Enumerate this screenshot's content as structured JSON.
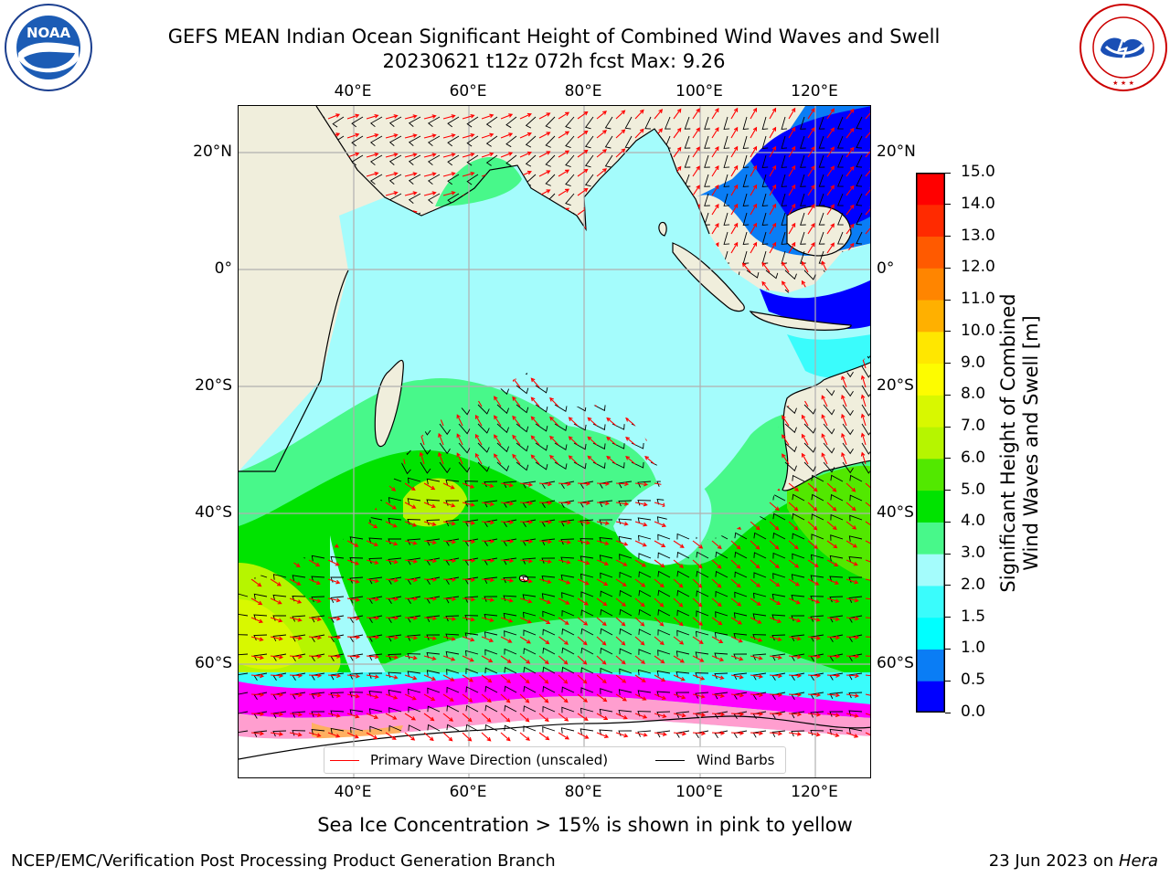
{
  "header": {
    "title_line1": "GEFS MEAN Indian Ocean Significant Height of Combined Wind Waves and Swell",
    "title_line2": "20230621 t12z 072h fcst   Max: 9.26"
  },
  "logos": {
    "noaa_text": "NOAA",
    "noaa_ring_text": "NATIONAL OCEANIC AND ATMOSPHERIC ADMINISTRATION · U.S. DEPARTMENT OF COMMERCE",
    "nws_ring_text": "NATIONAL WEATHER SERVICE"
  },
  "axes": {
    "lon_labels": [
      "40°E",
      "60°E",
      "80°E",
      "100°E",
      "120°E"
    ],
    "lat_labels_left": [
      "20°N",
      "0°",
      "20°S",
      "40°S",
      "60°S"
    ],
    "lat_labels_right": [
      "20°N",
      "0°",
      "20°S",
      "40°S",
      "60°S"
    ]
  },
  "colorbar": {
    "title_line1": "Significant Height of Combined",
    "title_line2": "Wind Waves and Swell [m]",
    "ticks": [
      "0.0",
      "0.5",
      "1.0",
      "1.5",
      "2.0",
      "3.0",
      "4.0",
      "5.0",
      "6.0",
      "7.0",
      "8.0",
      "9.0",
      "10.0",
      "11.0",
      "12.0",
      "13.0",
      "14.0",
      "15.0"
    ],
    "colors": [
      "#0000ff",
      "#0a7df5",
      "#00ffff",
      "#3afcfc",
      "#a4fcfc",
      "#48f88a",
      "#00e300",
      "#52e800",
      "#b6f500",
      "#d8f800",
      "#fdfc00",
      "#ffe700",
      "#ffb000",
      "#ff8500",
      "#ff5a00",
      "#ff2a00",
      "#ff0000"
    ]
  },
  "legend": {
    "wave_label": "Primary Wave Direction (unscaled)",
    "wave_color": "#ff0000",
    "barb_label": "Wind Barbs",
    "barb_color": "#000000"
  },
  "map": {
    "land_color": "#f0eedc",
    "ice_colors": [
      "#ff00ff",
      "#ff9ecf",
      "#ffb060",
      "#ffff80"
    ]
  },
  "caption": "Sea Ice Concentration > 15% is shown in pink to yellow",
  "footer": {
    "left": "NCEP/EMC/Verification Post Processing Product Generation Branch",
    "date": "23 Jun 2023 on ",
    "machine": "Hera"
  }
}
